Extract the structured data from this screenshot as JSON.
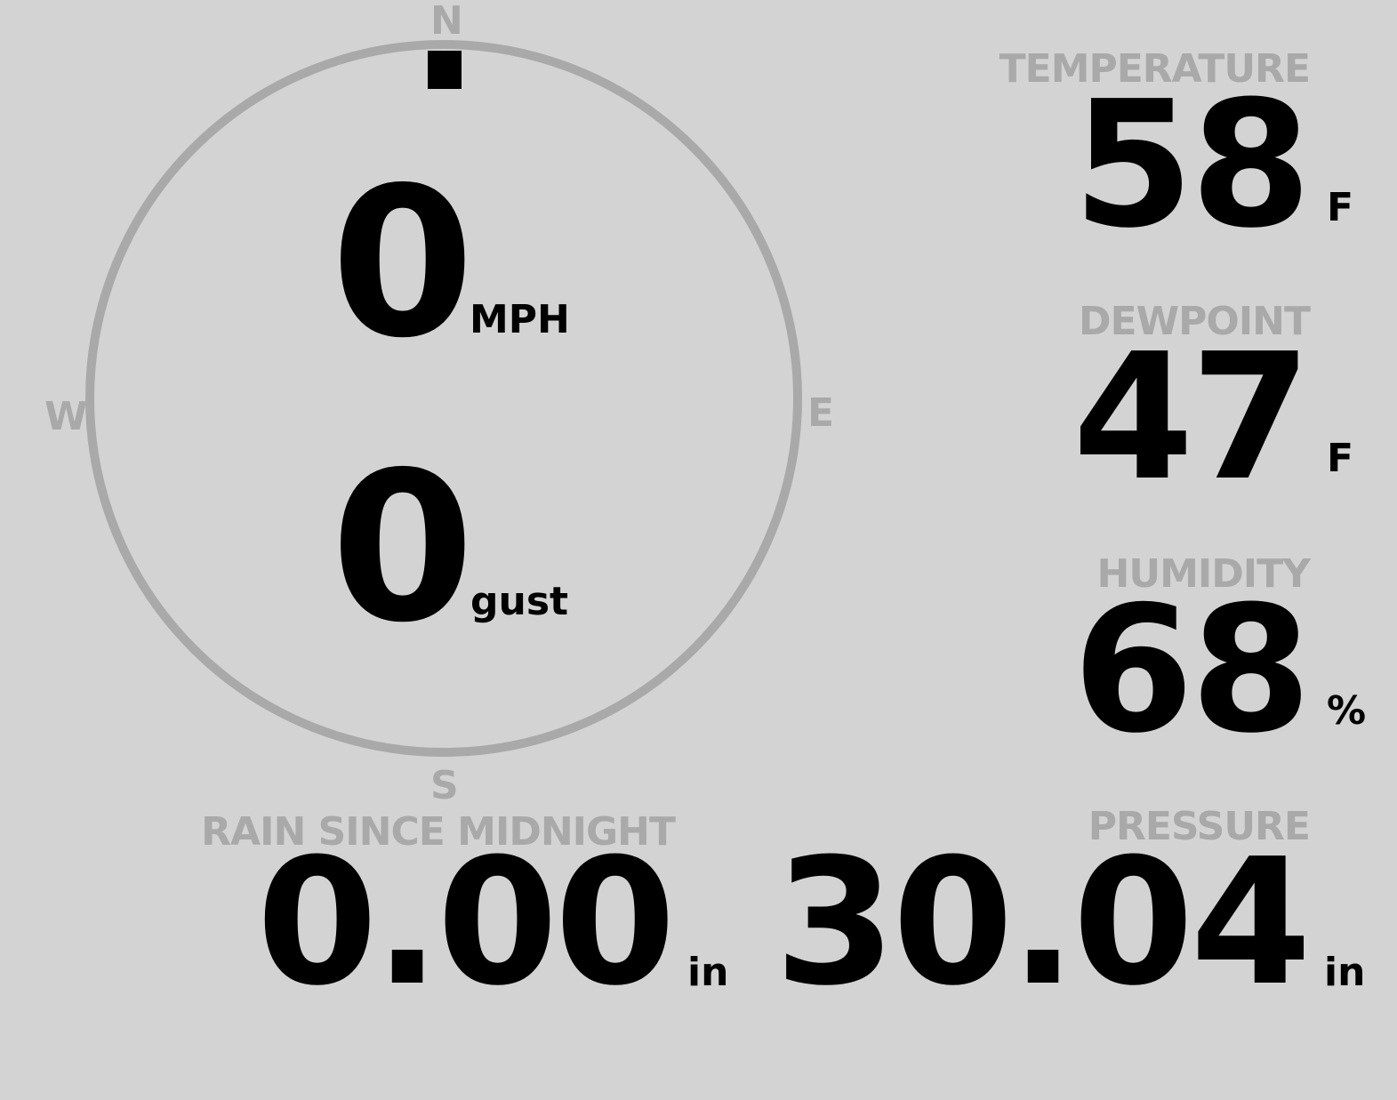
{
  "colors": {
    "background": "#d3d3d3",
    "label": "#a9a9a9",
    "value": "#000000"
  },
  "wind": {
    "compass": {
      "n": "N",
      "s": "S",
      "e": "E",
      "w": "W"
    },
    "direction_deg": 0,
    "speed": "0",
    "speed_unit": "MPH",
    "gust": "0",
    "gust_unit": "gust"
  },
  "temperature": {
    "label": "TEMPERATURE",
    "value": "58",
    "unit": "F"
  },
  "dewpoint": {
    "label": "DEWPOINT",
    "value": "47",
    "unit": "F"
  },
  "humidity": {
    "label": "HUMIDITY",
    "value": "68",
    "unit": "%"
  },
  "rain": {
    "label": "RAIN SINCE MIDNIGHT",
    "value": "0.00",
    "unit": "in"
  },
  "pressure": {
    "label": "PRESSURE",
    "value": "30.04",
    "unit": "in"
  }
}
